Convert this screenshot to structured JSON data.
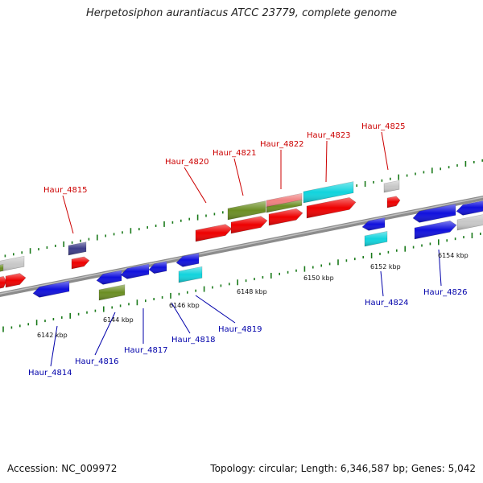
{
  "title": "Herpetosiphon aurantiacus ATCC 23779, complete genome",
  "footer": {
    "accession": "Accession: NC_009972",
    "summary": "Topology: circular; Length: 6,346,587 bp; Genes: 5,042"
  },
  "colors": {
    "red": "#ee0000",
    "blue": "#1010dd",
    "green": "#6b8e23",
    "cyan": "#11d4dd",
    "gray": "#c8c8c8",
    "navy": "#3c3c88",
    "pink": "#f08080",
    "label_top": "#cc0000",
    "label_bottom": "#0000aa",
    "tick": "#1a7a1a",
    "backbone": "#8c8c8c"
  },
  "kbp_ticks": [
    "6142 kbp",
    "6144 kbp",
    "6146 kbp",
    "6148 kbp",
    "6150 kbp",
    "6152 kbp",
    "6154 kbp"
  ],
  "gene_labels_top": [
    "Haur_4815",
    "Haur_4820",
    "Haur_4821",
    "Haur_4822",
    "Haur_4823",
    "Haur_4825"
  ],
  "gene_labels_bottom": [
    "Haur_4814",
    "Haur_4816",
    "Haur_4817",
    "Haur_4818",
    "Haur_4819",
    "Haur_4824",
    "Haur_4826"
  ]
}
